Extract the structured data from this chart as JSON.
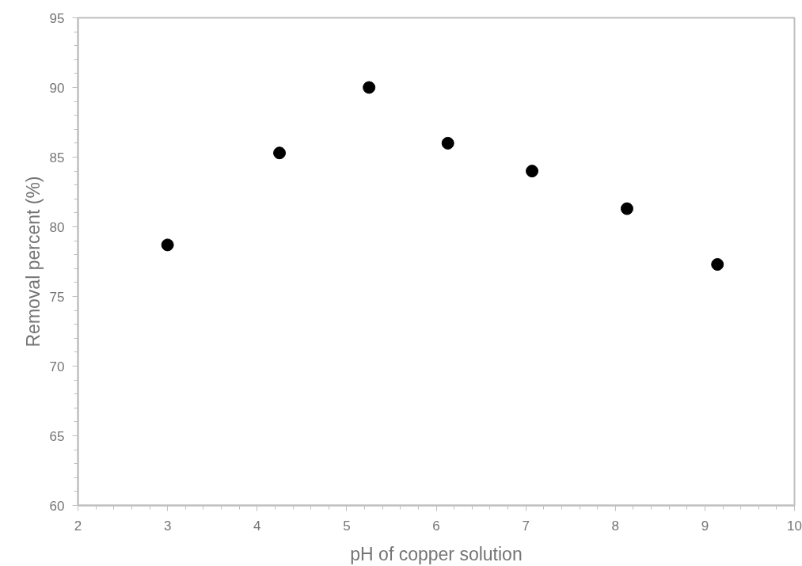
{
  "chart_data": {
    "type": "scatter",
    "xlabel": "pH of copper solution",
    "ylabel": "Removal percent (%)",
    "x": [
      3.0,
      4.25,
      5.25,
      6.13,
      7.07,
      8.13,
      9.14
    ],
    "series": [
      {
        "color": "#000000",
        "values": [
          78.7,
          85.3,
          90.0,
          86.0,
          84.0,
          81.3,
          77.3
        ]
      }
    ],
    "xlim": [
      2,
      10
    ],
    "ylim": [
      60,
      95
    ],
    "xticks": [
      2,
      3,
      4,
      5,
      6,
      7,
      8,
      9,
      10
    ],
    "yticks": [
      60,
      65,
      70,
      75,
      80,
      85,
      90,
      95
    ],
    "marker": "circle",
    "grid": false
  }
}
